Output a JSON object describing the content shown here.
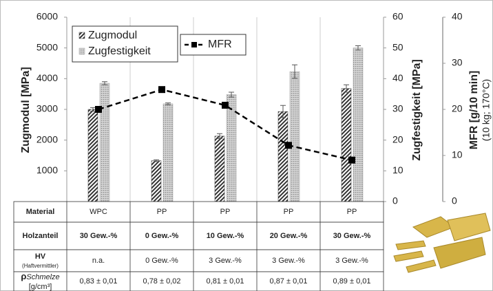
{
  "chart_data": {
    "type": "bar",
    "categories": [
      "WPC",
      "PP",
      "PP",
      "PP",
      "PP"
    ],
    "series": [
      {
        "name": "Zugmodul",
        "color": "#333333",
        "axis": "y",
        "values": [
          3000,
          1330,
          2130,
          2930,
          3680
        ],
        "errors": [
          60,
          30,
          80,
          200,
          120
        ]
      },
      {
        "name": "Zugfestigkeit",
        "color": "#9a9a9a",
        "axis": "y2",
        "values": [
          38.5,
          31.8,
          34.8,
          42.3,
          50.0
        ],
        "errors": [
          0.5,
          0.3,
          0.8,
          2.2,
          0.7
        ]
      },
      {
        "name": "MFR",
        "color": "#000000",
        "axis": "y3",
        "values": [
          20,
          24.3,
          20.9,
          12.2,
          9.0
        ]
      }
    ],
    "ylabel": "Zugmodul [MPa]",
    "ylim": [
      0,
      6000
    ],
    "yticks": [
      1000,
      2000,
      3000,
      4000,
      5000,
      6000
    ],
    "y2label": "Zugfestigkeit [MPa]",
    "y2lim": [
      0,
      60
    ],
    "y2ticks": [
      0,
      10,
      20,
      30,
      40,
      50,
      60
    ],
    "y3label": "MFR [g/10 min]",
    "y3label_2": "(10 kg; 170°C)",
    "y3lim": [
      0,
      40
    ],
    "y3ticks": [
      0,
      10,
      20,
      30,
      40
    ]
  },
  "table": {
    "rows": [
      {
        "label": "Material",
        "cells": [
          "WPC",
          "PP",
          "PP",
          "PP",
          "PP"
        ]
      },
      {
        "label": "Holzanteil",
        "cells": [
          "30 Gew.-%",
          "0 Gew.-%",
          "10 Gew.-%",
          "20 Gew.-%",
          "30 Gew.-%"
        ]
      },
      {
        "label": "HV",
        "sublabel": "(Haftvermittler)",
        "cells": [
          "n.a.",
          "0 Gew.-%",
          "3 Gew.-%",
          "3 Gew.-%",
          "3 Gew.-%"
        ]
      },
      {
        "label": "ρ",
        "label_italic": "Schmelze",
        "sublabel": "[g/cm³]",
        "cells": [
          "0,83 ± 0,01",
          "0,78 ± 0,02",
          "0,81 ± 0,01",
          "0,87 ± 0,01",
          "0,89 ± 0,01"
        ]
      }
    ]
  }
}
